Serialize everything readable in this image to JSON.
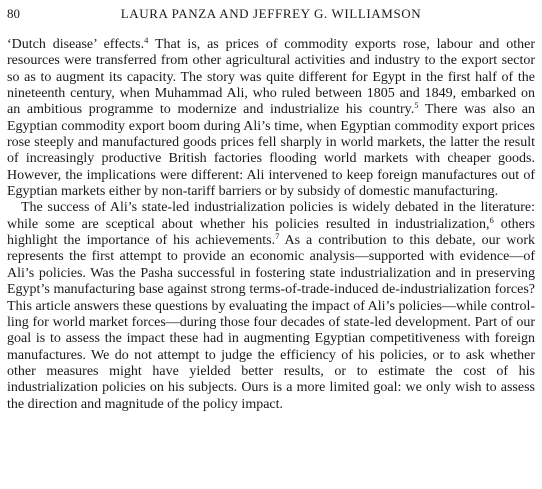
{
  "header": {
    "page_number": "80",
    "running_head": "LAURA PANZA AND JEFFREY G. WILLIAMSON"
  },
  "paragraphs": [
    {
      "id": "p1",
      "segments": [
        {
          "text": "‘Dutch disease’ effects."
        },
        {
          "text": "4",
          "sup": true
        },
        {
          "text": " That is, as prices of commodity exports rose, labour and other resources were transferred from other agricultural activities and industry to the export sector so as to augment its capacity. The story was quite different for Egypt in the first half of the nineteenth century, when Muhammad Ali, who ruled between 1805 and 1849, embarked on an ambitious programme to modernize and industrialize his country."
        },
        {
          "text": "5",
          "sup": true
        },
        {
          "text": " There was also an Egyptian commodity export boom during Ali’s time, when Egyptian commodity export prices rose steeply and manufactured goods prices fell sharply in world markets, the latter the result of increasingly productive British factories flooding world markets with cheaper goods. However, the implications were different: Ali intervened to keep foreign manufactures out of Egyptian markets either by non-tariff barriers or by subsidy of domestic manufacturing."
        }
      ]
    },
    {
      "id": "p2",
      "segments": [
        {
          "text": "The success of Ali’s state-led industrialization policies is widely debated in the literature: while some are sceptical about whether his policies resulted in indus­trialization,"
        },
        {
          "text": "6",
          "sup": true
        },
        {
          "text": " others highlight the importance of his achievements."
        },
        {
          "text": "7",
          "sup": true
        },
        {
          "text": " As a contribu­tion to this debate, our work represents the first attempt to provide an economic analysis—supported with evidence—of Ali’s policies. Was the Pasha successful in fostering state industrialization and in preserving Egypt’s manufacturing base against strong terms-of-trade-induced de-industrialization forces? This article answers these questions by evaluating the impact of Ali’s policies—while control­ling for world market forces—during those four decades of state-led development. Part of our goal is to assess the impact these had in augmenting Egyptian com­petitiveness with foreign manufactures. We do not attempt to judge the efficiency of his policies, or to ask whether other measures might have yielded better results, or to estimate the cost of his industrialization policies on his subjects. Ours is a more limited goal: we only wish to assess the direction and magnitude of the policy impact."
        }
      ]
    }
  ]
}
